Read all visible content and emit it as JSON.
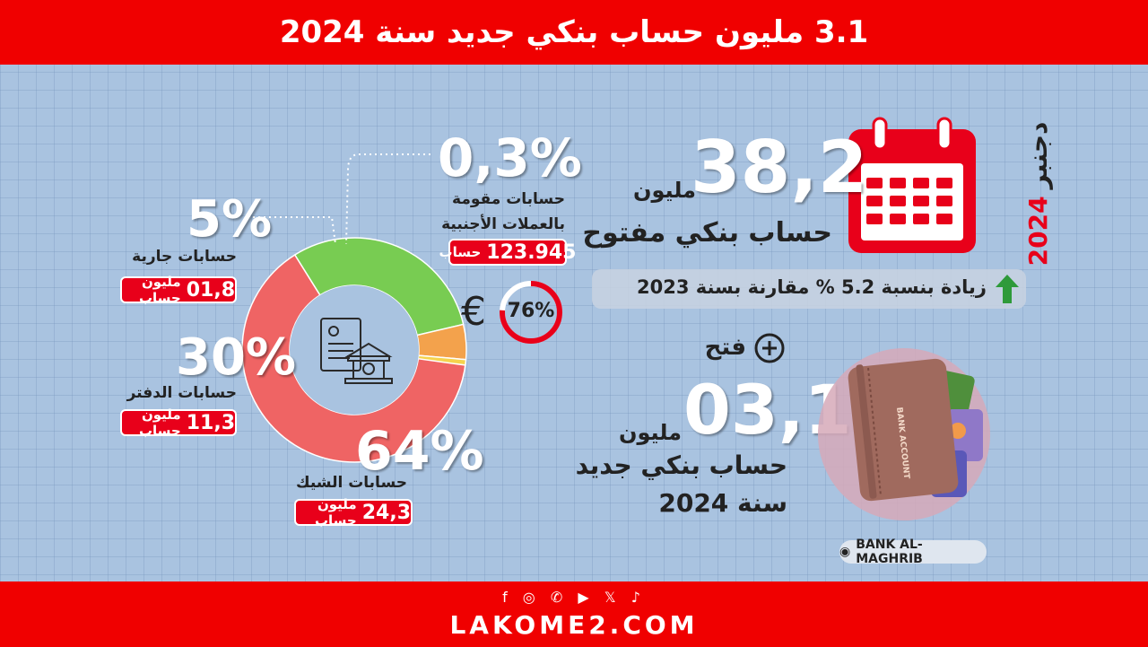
{
  "header": {
    "title": "3.1 مليون حساب بنكي جديد سنة 2024"
  },
  "footer": {
    "socials": "f ◎ ✆ ▶ 𝕏 ♪",
    "site": "LAKOME2.COM"
  },
  "stats": {
    "date_month": "دجنبر",
    "date_year": "2024",
    "total_number": "38,2",
    "total_unit": "مليون",
    "total_label": "حساب بنكي مفتوح",
    "increase_text": "زيادة بنسبة 5.2 % مقارنة بسنة 2023",
    "opened_label": "فتح",
    "new_number": "03,1",
    "new_unit": "مليون",
    "new_label1": "حساب بنكي جديد",
    "new_label2": "سنة 2024",
    "bank_account_text": "BANK ACCOUNT",
    "euro_share": "76%",
    "euro_symbol": "€"
  },
  "credit": {
    "source": "BANK AL-MAGHRIB"
  },
  "colors": {
    "red": "#f00000",
    "pink": "#ef6464",
    "green": "#78cc52",
    "orange": "#f3a24c",
    "yellow": "#f5d34d"
  },
  "chart_data": {
    "type": "pie",
    "categories": [
      "حسابات الشيك",
      "حسابات الدفتر",
      "حسابات جارية",
      "حسابات مقومة بالعملات الأجنبية"
    ],
    "values": [
      64,
      30,
      5,
      0.3
    ],
    "series": [
      {
        "values": [
          64,
          30,
          5,
          0.3
        ]
      }
    ],
    "percent_labels": [
      "64%",
      "30%",
      "5%",
      "0,3%"
    ],
    "amount_labels": [
      {
        "number": "24,3",
        "unit": "مليون حساب"
      },
      {
        "number": "11,3",
        "unit": "مليون حساب"
      },
      {
        "number": "01,8",
        "unit": "مليون حساب"
      },
      {
        "number": "123.945",
        "unit": "حساب"
      }
    ],
    "donut": true
  }
}
